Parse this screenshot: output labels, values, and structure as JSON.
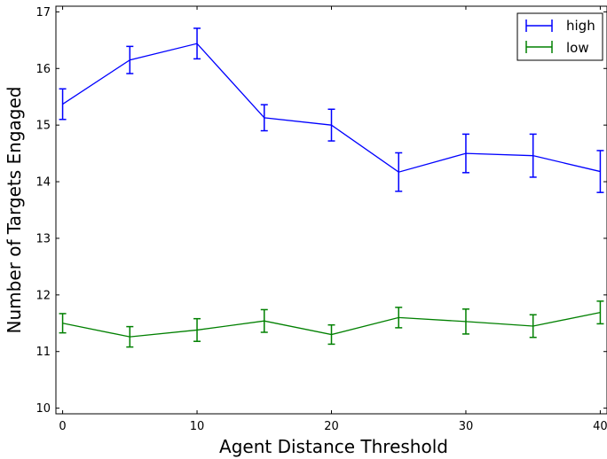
{
  "chart_data": {
    "type": "line",
    "xlabel": "Agent Distance Threshold",
    "ylabel": "Number of Targets Engaged",
    "xlim": [
      -0.5,
      40.5
    ],
    "ylim": [
      9.9,
      17.1
    ],
    "xticks": [
      0,
      10,
      20,
      30,
      40
    ],
    "yticks": [
      10,
      11,
      12,
      13,
      14,
      15,
      16,
      17
    ],
    "grid": false,
    "legend_position": "top-right",
    "x": [
      0,
      5,
      10,
      15,
      20,
      25,
      30,
      35,
      40
    ],
    "series": [
      {
        "name": "high",
        "color": "#0000ff",
        "values": [
          15.37,
          16.15,
          16.44,
          15.13,
          15.0,
          14.17,
          14.5,
          14.46,
          14.18
        ],
        "errors": [
          0.27,
          0.24,
          0.27,
          0.23,
          0.28,
          0.34,
          0.34,
          0.38,
          0.37
        ]
      },
      {
        "name": "low",
        "color": "#008000",
        "values": [
          11.5,
          11.26,
          11.38,
          11.54,
          11.3,
          11.6,
          11.53,
          11.45,
          11.69
        ],
        "errors": [
          0.17,
          0.18,
          0.2,
          0.2,
          0.17,
          0.18,
          0.22,
          0.2,
          0.2
        ]
      }
    ]
  }
}
